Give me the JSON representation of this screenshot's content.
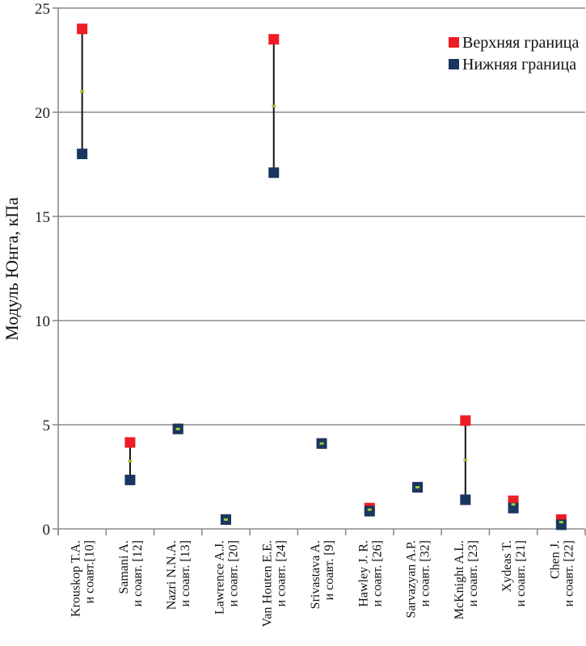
{
  "chart_data": {
    "type": "scatter",
    "title": "",
    "xlabel": "",
    "ylabel": "Модуль Юнга, кПа",
    "ylim": [
      0,
      25
    ],
    "yticks": [
      0,
      5,
      10,
      15,
      20,
      25
    ],
    "grid": true,
    "legend_position": "top-right",
    "categories": [
      [
        "Krouskop T.A.",
        "и соавт.[10]"
      ],
      [
        "Samani A.",
        "и соавт. [12]"
      ],
      [
        "Nazri N.N.A.",
        "и соавт. [13]"
      ],
      [
        "Lawrence A.J.",
        "и соавт. [20]"
      ],
      [
        "Van Houten E.E.",
        "и соавт. [24]"
      ],
      [
        "Srivastava A.",
        "и соавт. [9]"
      ],
      [
        "Hawley J. R.",
        "и соавт. [26]"
      ],
      [
        "Sarvazyan A.P.",
        "и соавт. [32]"
      ],
      [
        "McKnight A.L.",
        "и соавт. [23]"
      ],
      [
        "Xydeas T.",
        "и соавт. [21]"
      ],
      [
        "Chen J.",
        "и соавт. [22]"
      ]
    ],
    "series": [
      {
        "name": "Верхняя граница",
        "color": "#ee1c25",
        "values": [
          24.0,
          4.15,
          4.8,
          0.45,
          23.5,
          4.1,
          1.0,
          2.0,
          5.2,
          1.35,
          0.45
        ]
      },
      {
        "name": "Нижняя граница",
        "color": "#1a3560",
        "values": [
          18.0,
          2.35,
          4.8,
          0.45,
          17.1,
          4.1,
          0.85,
          2.0,
          1.4,
          1.0,
          0.2
        ]
      }
    ],
    "midpoint_color": "#9acd32"
  }
}
